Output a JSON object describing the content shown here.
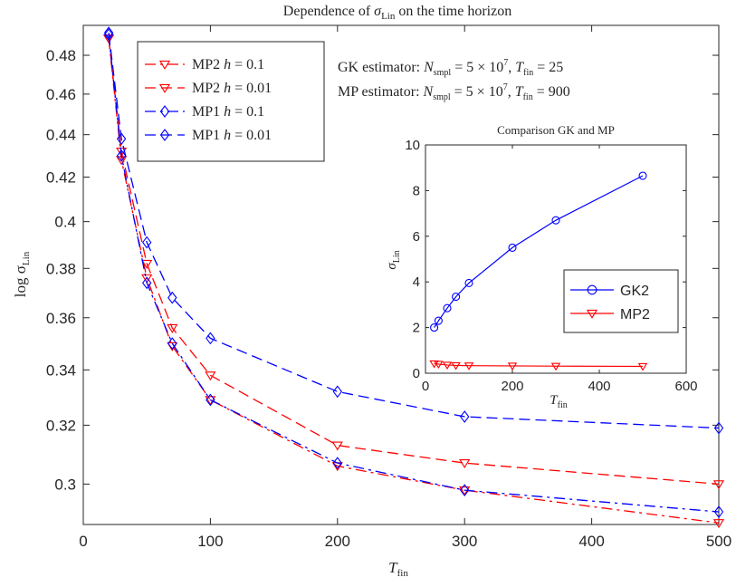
{
  "chart_data": [
    {
      "type": "line",
      "title": "Dependence of σ_Lin on the time horizon",
      "title_main": "Dependence of ",
      "title_sym": "σ",
      "title_sub": "Lin",
      "title_tail": " on the time horizon",
      "xlabel": "T_fin",
      "xlabel_main": "T",
      "xlabel_sub": "fin",
      "ylabel": "log σ_Lin",
      "ylabel_main": "log σ",
      "ylabel_sub": "Lin",
      "y_scale": "log",
      "xlim": [
        0,
        500
      ],
      "ylim": [
        0.287,
        0.496
      ],
      "x_ticks": [
        0,
        100,
        200,
        300,
        400,
        500
      ],
      "x_tick_labels": [
        "0",
        "100",
        "200",
        "300",
        "400",
        "500"
      ],
      "y_ticks": [
        0.3,
        0.32,
        0.34,
        0.36,
        0.38,
        0.4,
        0.42,
        0.44,
        0.46,
        0.48
      ],
      "y_tick_labels": [
        "0.3",
        "0.32",
        "0.34",
        "0.36",
        "0.38",
        "0.4",
        "0.42",
        "0.44",
        "0.46",
        "0.48"
      ],
      "grid": false,
      "legend_position": "top-left",
      "series": [
        {
          "name": "MP2 h = 0.1",
          "legend_main": "MP2 ",
          "legend_h": "h",
          "legend_val": " = 0.1",
          "color": "#ff0000",
          "marker": "triangle-down",
          "dash": "dashdot",
          "x": [
            20,
            30,
            50,
            70,
            100,
            200,
            300,
            500
          ],
          "y": [
            0.489,
            0.428,
            0.376,
            0.349,
            0.329,
            0.306,
            0.298,
            0.2875
          ]
        },
        {
          "name": "MP2 h = 0.01",
          "legend_main": "MP2 ",
          "legend_h": "h",
          "legend_val": " = 0.01",
          "color": "#ff0000",
          "marker": "triangle-down",
          "dash": "dashed",
          "x": [
            20,
            30,
            50,
            70,
            100,
            200,
            300,
            500
          ],
          "y": [
            0.489,
            0.432,
            0.382,
            0.356,
            0.338,
            0.313,
            0.307,
            0.3
          ],
          "endpoint_style": "dashed"
        },
        {
          "name": "MP1 h = 0.1",
          "legend_main": "MP1 ",
          "legend_h": "h",
          "legend_val": " = 0.1",
          "color": "#0000ff",
          "marker": "diamond",
          "dash": "dashdot",
          "x": [
            20,
            30,
            50,
            70,
            100,
            200,
            300,
            500
          ],
          "y": [
            0.491,
            0.43,
            0.374,
            0.35,
            0.329,
            0.307,
            0.298,
            0.291
          ]
        },
        {
          "name": "MP1 h = 0.01",
          "legend_main": "MP1 ",
          "legend_h": "h",
          "legend_val": " = 0.01",
          "color": "#0000ff",
          "marker": "diamond",
          "dash": "dashed",
          "x": [
            20,
            30,
            50,
            70,
            100,
            200,
            300,
            500
          ],
          "y": [
            0.492,
            0.438,
            0.391,
            0.368,
            0.352,
            0.332,
            0.323,
            0.319
          ]
        }
      ],
      "annotations": [
        {
          "text": "GK estimator: N_smpl = 5 × 10^7, T_fin = 25",
          "prefix": "GK estimator: ",
          "n": "N",
          "n_sub": "smpl",
          "eq": " = 5 × 10",
          "exp": "7",
          "sep": ", ",
          "t": "T",
          "t_sub": "fin",
          "val": " = 25"
        },
        {
          "text": "MP estimator: N_smpl = 5 × 10^7, T_fin = 900",
          "prefix": "MP estimator: ",
          "n": "N",
          "n_sub": "smpl",
          "eq": " = 5 × 10",
          "exp": "7",
          "sep": ", ",
          "t": "T",
          "t_sub": "fin",
          "val": " = 900"
        }
      ]
    },
    {
      "type": "line",
      "title": "Comparison GK and MP",
      "xlabel": "T_fin",
      "xlabel_main": "T",
      "xlabel_sub": "fin",
      "ylabel": "σ_Lin",
      "ylabel_main": "σ",
      "ylabel_sub": "Lin",
      "xlim": [
        0,
        600
      ],
      "ylim": [
        0,
        10
      ],
      "x_ticks": [
        0,
        200,
        400,
        600
      ],
      "x_tick_labels": [
        "0",
        "200",
        "400",
        "600"
      ],
      "y_ticks": [
        0,
        2,
        4,
        6,
        8,
        10
      ],
      "y_tick_labels": [
        "0",
        "2",
        "4",
        "6",
        "8",
        "10"
      ],
      "grid": false,
      "legend_position": "bottom-right",
      "series": [
        {
          "name": "GK2",
          "color": "#0000ff",
          "marker": "circle",
          "x": [
            20,
            30,
            50,
            70,
            100,
            200,
            300,
            500
          ],
          "y": [
            2.0,
            2.3,
            2.85,
            3.35,
            3.95,
            5.5,
            6.7,
            8.65
          ]
        },
        {
          "name": "MP2",
          "color": "#ff0000",
          "marker": "triangle-down",
          "x": [
            20,
            30,
            50,
            70,
            100,
            200,
            300,
            500
          ],
          "y": [
            0.42,
            0.4,
            0.36,
            0.34,
            0.33,
            0.32,
            0.31,
            0.3
          ]
        }
      ]
    }
  ]
}
